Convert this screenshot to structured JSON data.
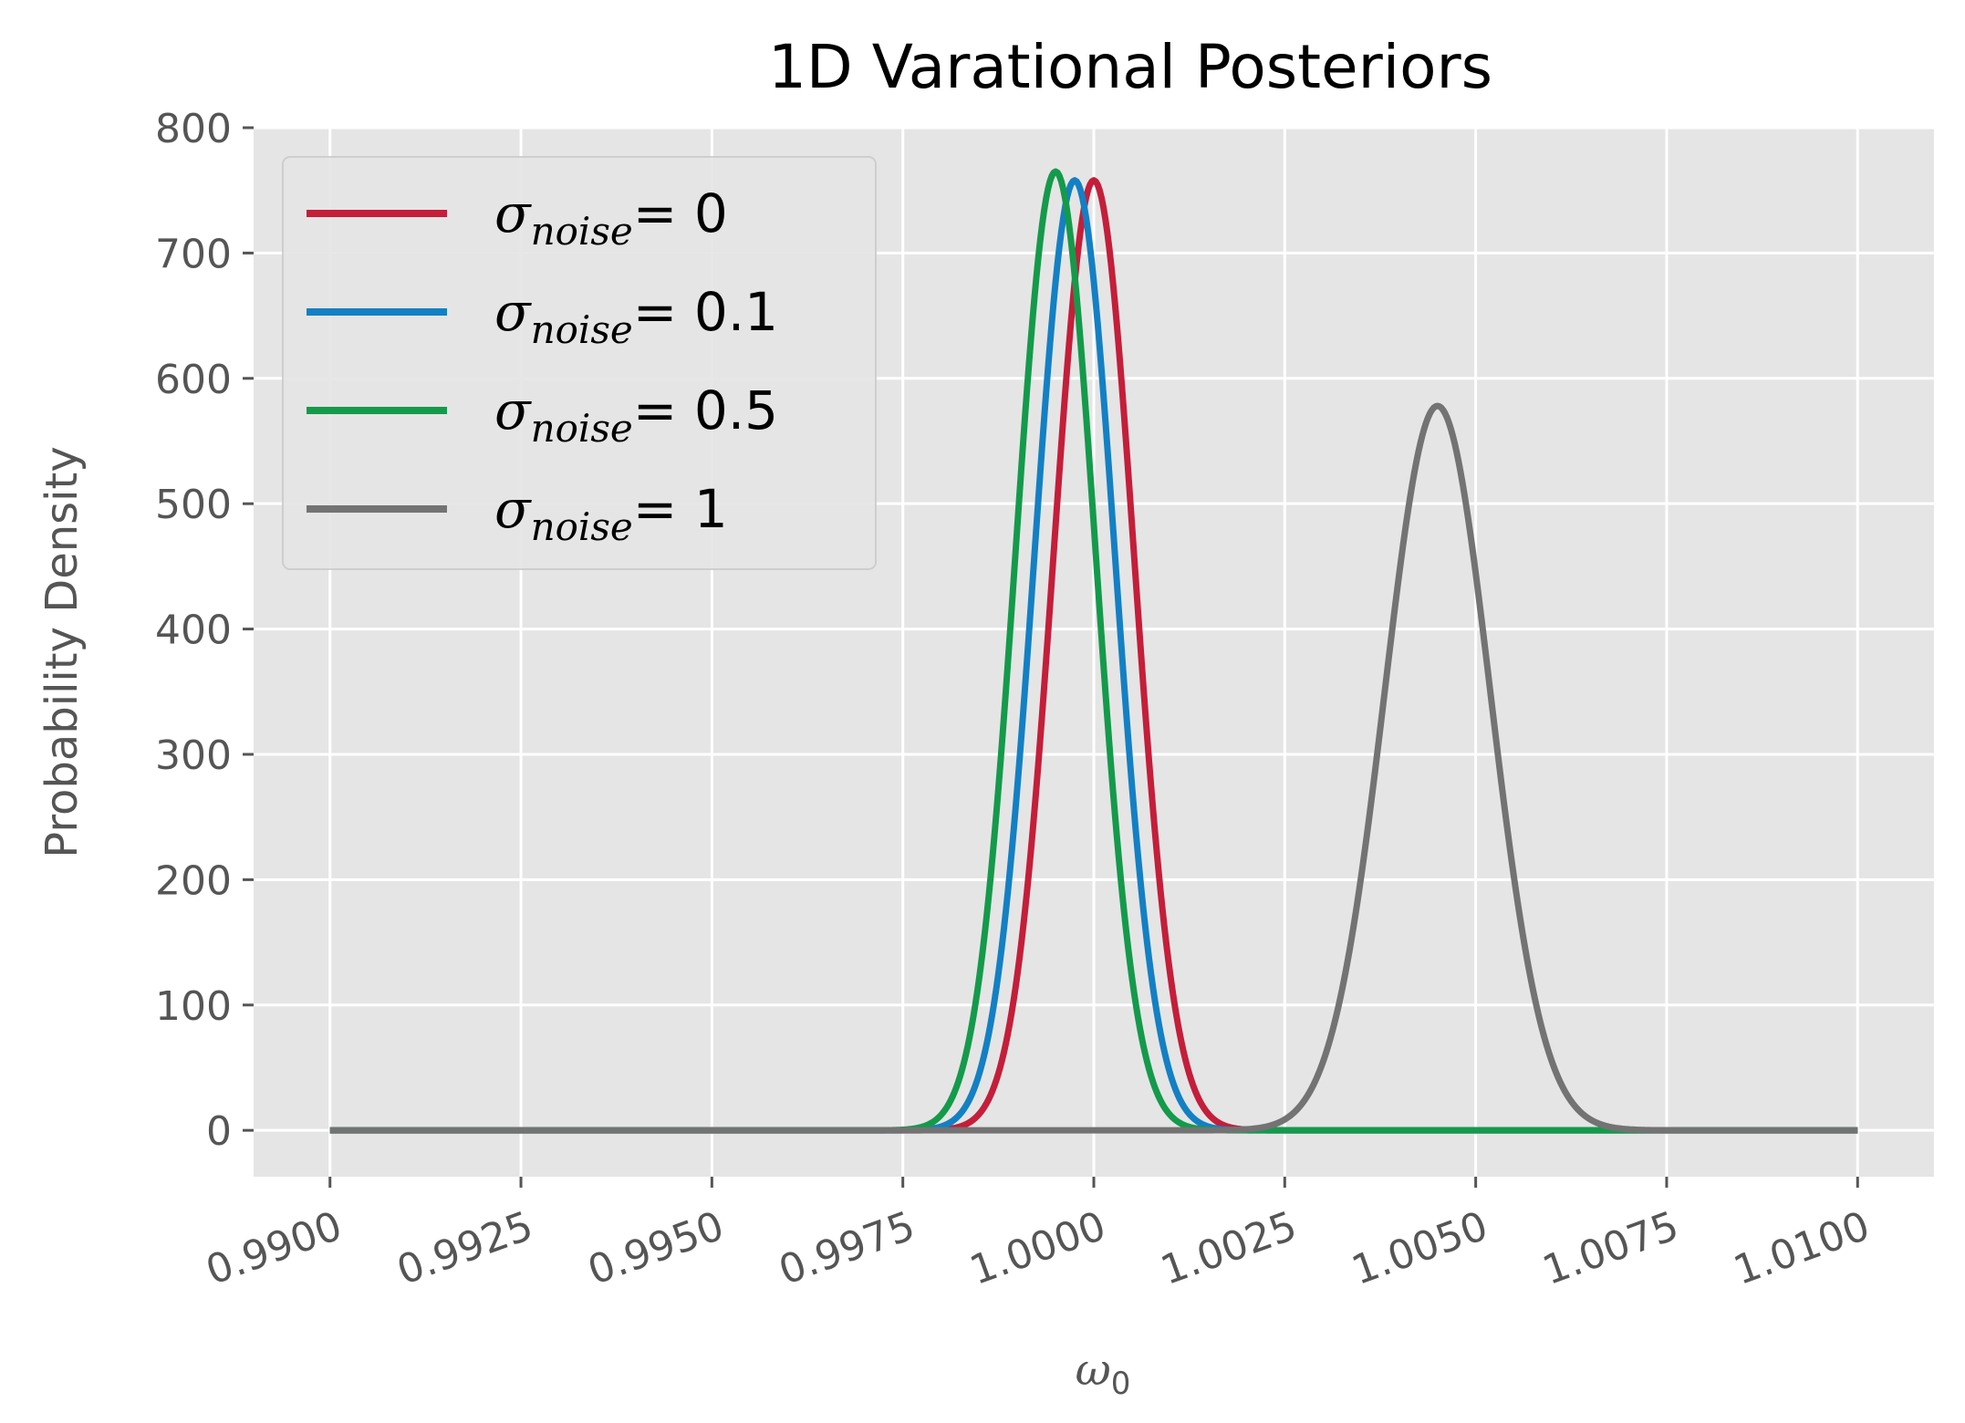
{
  "chart_data": {
    "type": "line",
    "title": "1D Varational Posteriors",
    "xlabel": "ω",
    "xlabel_sub": "0",
    "ylabel": "Probability Density",
    "xlim": [
      0.989,
      1.011
    ],
    "ylim": [
      -37,
      800
    ],
    "xticks": [
      0.99,
      0.9925,
      0.995,
      0.9975,
      1.0,
      1.0025,
      1.005,
      1.0075,
      1.01
    ],
    "xtick_labels": [
      "0.9900",
      "0.9925",
      "0.9950",
      "0.9975",
      "1.0000",
      "1.0025",
      "1.0050",
      "1.0075",
      "1.0100"
    ],
    "yticks": [
      0,
      100,
      200,
      300,
      400,
      500,
      600,
      700,
      800
    ],
    "ytick_labels": [
      "0",
      "100",
      "200",
      "300",
      "400",
      "500",
      "600",
      "700",
      "800"
    ],
    "x_range": [
      0.99,
      1.01
    ],
    "grid": true,
    "legend_position": "top-left",
    "style": {
      "plot_background": "#e5e5e5",
      "grid_color": "#ffffff"
    },
    "series": [
      {
        "name": "σnoise = 0",
        "sym": "σ",
        "sub": "noise",
        "rhs": "= 0",
        "mean": 1.0,
        "peak": 758,
        "color": "#c41e3a"
      },
      {
        "name": "σnoise = 0.1",
        "sym": "σ",
        "sub": "noise",
        "rhs": "= 0.1",
        "mean": 0.99975,
        "peak": 758,
        "color": "#1380c4"
      },
      {
        "name": "σnoise = 0.5",
        "sym": "σ",
        "sub": "noise",
        "rhs": "= 0.5",
        "mean": 0.9995,
        "peak": 765,
        "color": "#149a4b"
      },
      {
        "name": "σnoise = 1",
        "sym": "σ",
        "sub": "noise",
        "rhs": "= 1",
        "mean": 1.0045,
        "peak": 578,
        "color": "#737373"
      }
    ]
  }
}
